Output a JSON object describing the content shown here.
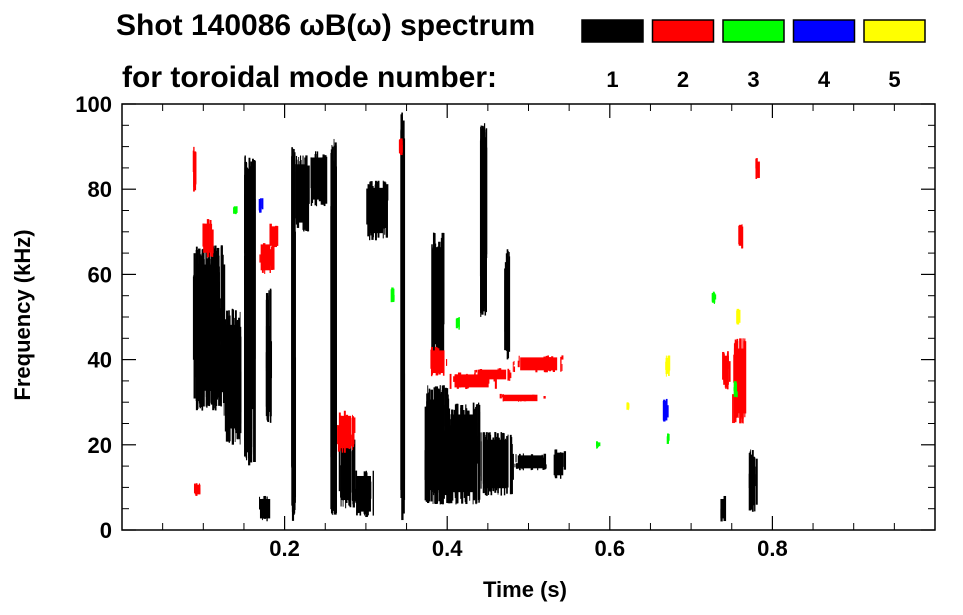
{
  "chart_data": {
    "type": "scatter",
    "title_line1": "Shot 140086 ωB(ω) spectrum",
    "title_line2": "for toroidal mode number:",
    "xlabel": "Time (s)",
    "ylabel": "Frequency (kHz)",
    "xlim": [
      0.0,
      1.0
    ],
    "ylim": [
      0,
      100
    ],
    "x_ticks": [
      0.2,
      0.4,
      0.6,
      0.8
    ],
    "y_ticks": [
      0,
      20,
      40,
      60,
      80,
      100
    ],
    "legend_position": "top-right",
    "series": [
      {
        "name": "1",
        "color": "#000000",
        "blobs": [
          {
            "t0": 0.087,
            "t1": 0.125,
            "f0": 28,
            "f1": 67
          },
          {
            "t0": 0.125,
            "t1": 0.145,
            "f0": 20,
            "f1": 52
          },
          {
            "t0": 0.15,
            "t1": 0.162,
            "f0": 15,
            "f1": 88
          },
          {
            "t0": 0.167,
            "t1": 0.185,
            "f0": 2,
            "f1": 8
          },
          {
            "t0": 0.176,
            "t1": 0.182,
            "f0": 25,
            "f1": 58
          },
          {
            "t0": 0.208,
            "t1": 0.212,
            "f0": 2,
            "f1": 90
          },
          {
            "t0": 0.212,
            "t1": 0.228,
            "f0": 70,
            "f1": 88
          },
          {
            "t0": 0.23,
            "t1": 0.25,
            "f0": 76,
            "f1": 89
          },
          {
            "t0": 0.256,
            "t1": 0.262,
            "f0": 3,
            "f1": 92
          },
          {
            "t0": 0.266,
            "t1": 0.285,
            "f0": 5,
            "f1": 22
          },
          {
            "t0": 0.285,
            "t1": 0.31,
            "f0": 3,
            "f1": 14
          },
          {
            "t0": 0.3,
            "t1": 0.325,
            "f0": 68,
            "f1": 82
          },
          {
            "t0": 0.342,
            "t1": 0.346,
            "f0": 2,
            "f1": 98
          },
          {
            "t0": 0.372,
            "t1": 0.4,
            "f0": 6,
            "f1": 34
          },
          {
            "t0": 0.38,
            "t1": 0.395,
            "f0": 40,
            "f1": 70
          },
          {
            "t0": 0.4,
            "t1": 0.44,
            "f0": 6,
            "f1": 30
          },
          {
            "t0": 0.44,
            "t1": 0.48,
            "f0": 8,
            "f1": 23
          },
          {
            "t0": 0.48,
            "t1": 0.525,
            "f0": 14,
            "f1": 18
          },
          {
            "t0": 0.53,
            "t1": 0.545,
            "f0": 12,
            "f1": 19
          },
          {
            "t0": 0.44,
            "t1": 0.448,
            "f0": 50,
            "f1": 96
          },
          {
            "t0": 0.47,
            "t1": 0.476,
            "f0": 40,
            "f1": 66
          },
          {
            "t0": 0.77,
            "t1": 0.78,
            "f0": 4,
            "f1": 19
          },
          {
            "t0": 0.735,
            "t1": 0.742,
            "f0": 2,
            "f1": 8
          }
        ]
      },
      {
        "name": "2",
        "color": "#ff0000",
        "blobs": [
          {
            "t0": 0.087,
            "t1": 0.09,
            "f0": 78,
            "f1": 90
          },
          {
            "t0": 0.098,
            "t1": 0.11,
            "f0": 64,
            "f1": 73
          },
          {
            "t0": 0.088,
            "t1": 0.098,
            "f0": 8,
            "f1": 11
          },
          {
            "t0": 0.168,
            "t1": 0.185,
            "f0": 60,
            "f1": 68
          },
          {
            "t0": 0.18,
            "t1": 0.192,
            "f0": 66,
            "f1": 72
          },
          {
            "t0": 0.264,
            "t1": 0.285,
            "f0": 18,
            "f1": 28
          },
          {
            "t0": 0.34,
            "t1": 0.344,
            "f0": 88,
            "f1": 92
          },
          {
            "t0": 0.378,
            "t1": 0.4,
            "f0": 36,
            "f1": 43
          },
          {
            "t0": 0.4,
            "t1": 0.46,
            "f0": 33,
            "f1": 37
          },
          {
            "t0": 0.46,
            "t1": 0.52,
            "f0": 30,
            "f1": 32
          },
          {
            "t0": 0.43,
            "t1": 0.48,
            "f0": 35,
            "f1": 38
          },
          {
            "t0": 0.48,
            "t1": 0.545,
            "f0": 37,
            "f1": 41
          },
          {
            "t0": 0.738,
            "t1": 0.748,
            "f0": 33,
            "f1": 42
          },
          {
            "t0": 0.75,
            "t1": 0.768,
            "f0": 25,
            "f1": 45
          },
          {
            "t0": 0.779,
            "t1": 0.782,
            "f0": 82,
            "f1": 88
          },
          {
            "t0": 0.758,
            "t1": 0.762,
            "f0": 66,
            "f1": 72
          }
        ]
      },
      {
        "name": "3",
        "color": "#00ff00",
        "blobs": [
          {
            "t0": 0.136,
            "t1": 0.14,
            "f0": 74,
            "f1": 76
          },
          {
            "t0": 0.33,
            "t1": 0.333,
            "f0": 53,
            "f1": 57
          },
          {
            "t0": 0.41,
            "t1": 0.414,
            "f0": 47,
            "f1": 50
          },
          {
            "t0": 0.583,
            "t1": 0.586,
            "f0": 19,
            "f1": 21
          },
          {
            "t0": 0.67,
            "t1": 0.673,
            "f0": 20,
            "f1": 23
          },
          {
            "t0": 0.725,
            "t1": 0.729,
            "f0": 53,
            "f1": 56
          },
          {
            "t0": 0.752,
            "t1": 0.756,
            "f0": 31,
            "f1": 35
          }
        ]
      },
      {
        "name": "4",
        "color": "#0000ff",
        "blobs": [
          {
            "t0": 0.168,
            "t1": 0.172,
            "f0": 74,
            "f1": 78
          },
          {
            "t0": 0.664,
            "t1": 0.672,
            "f0": 25,
            "f1": 31
          }
        ]
      },
      {
        "name": "5",
        "color": "#ffff00",
        "blobs": [
          {
            "t0": 0.668,
            "t1": 0.672,
            "f0": 36,
            "f1": 41
          },
          {
            "t0": 0.755,
            "t1": 0.758,
            "f0": 48,
            "f1": 52
          },
          {
            "t0": 0.62,
            "t1": 0.623,
            "f0": 28,
            "f1": 30
          }
        ]
      }
    ]
  }
}
